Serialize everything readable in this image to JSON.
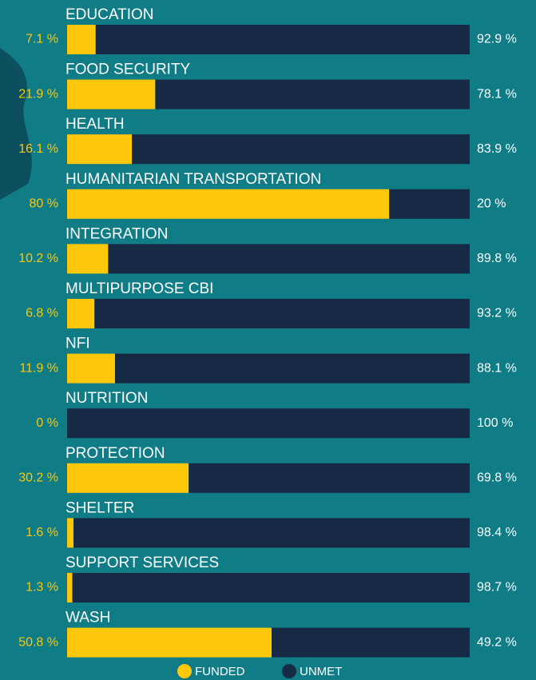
{
  "chart_data": {
    "type": "bar",
    "orientation": "horizontal",
    "stacked": true,
    "categories": [
      "EDUCATION",
      "FOOD SECURITY",
      "HEALTH",
      "HUMANITARIAN TRANSPORTATION",
      "INTEGRATION",
      "MULTIPURPOSE CBI",
      "NFI",
      "NUTRITION",
      "PROTECTION",
      "SHELTER",
      "SUPPORT SERVICES",
      "WASH"
    ],
    "xlim": [
      0,
      100
    ],
    "legend": "bottom",
    "series": [
      {
        "name": "FUNDED",
        "color": "#fdc70c",
        "values": [
          7.1,
          21.9,
          16.1,
          80,
          10.2,
          6.8,
          11.9,
          0,
          30.2,
          1.6,
          1.3,
          50.8
        ],
        "value_labels": [
          "7.1 %",
          "21.9 %",
          "16.1 %",
          "80 %",
          "10.2 %",
          "6.8 %",
          "11.9 %",
          "0 %",
          "30.2 %",
          "1.6 %",
          "1.3 %",
          "50.8 %"
        ]
      },
      {
        "name": "UNMET",
        "color": "#172a45",
        "values": [
          92.9,
          78.1,
          83.9,
          20,
          89.8,
          93.2,
          88.1,
          100,
          69.8,
          98.4,
          98.7,
          49.2
        ],
        "value_labels": [
          "92.9 %",
          "78.1 %",
          "83.9 %",
          "20 %",
          "89.8 %",
          "93.2 %",
          "88.1 %",
          "100 %",
          "69.8 %",
          "98.4 %",
          "98.7 %",
          "49.2 %"
        ]
      }
    ]
  }
}
